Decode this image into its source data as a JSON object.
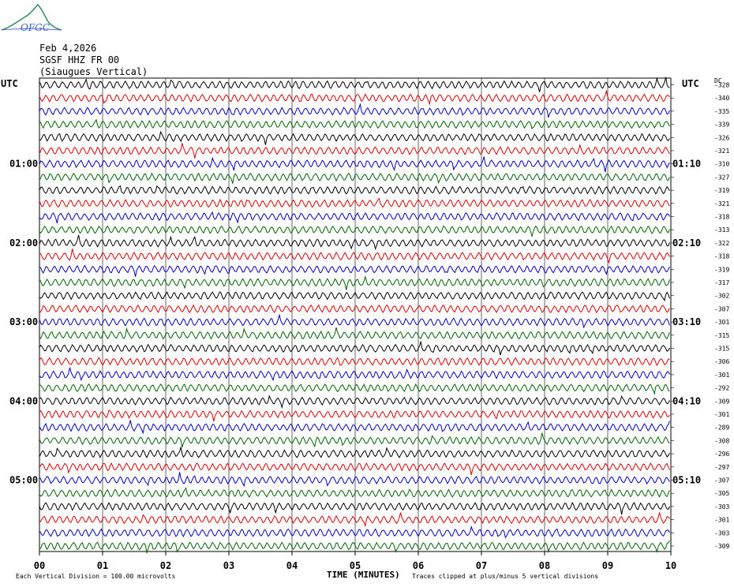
{
  "header": {
    "logo_text": "OFGC",
    "date": "Feb 4,2026",
    "station": "SGSF HHZ FR 00",
    "location": "(Siaugues Vertical)"
  },
  "chart_data": {
    "type": "line",
    "description_kind": "helicorder",
    "utc_label_left": "UTC",
    "utc_label_right": "UTC",
    "dc_header": "DC",
    "xlabel": "TIME (MINUTES)",
    "x_ticks": [
      "00",
      "01",
      "02",
      "03",
      "04",
      "05",
      "06",
      "07",
      "08",
      "09",
      "10"
    ],
    "xlim": [
      0,
      10
    ],
    "left_hour_labels": [
      {
        "row": 6,
        "text": "01:00"
      },
      {
        "row": 12,
        "text": "02:00"
      },
      {
        "row": 18,
        "text": "03:00"
      },
      {
        "row": 24,
        "text": "04:00"
      },
      {
        "row": 30,
        "text": "05:00"
      }
    ],
    "right_hour_labels": [
      {
        "row": 6,
        "text": "01:10"
      },
      {
        "row": 12,
        "text": "02:10"
      },
      {
        "row": 18,
        "text": "03:10"
      },
      {
        "row": 24,
        "text": "04:10"
      },
      {
        "row": 30,
        "text": "05:10"
      }
    ],
    "dc_offsets": [
      -328,
      -340,
      -335,
      -339,
      -326,
      -321,
      -310,
      -327,
      -319,
      -321,
      -318,
      -313,
      -322,
      -318,
      -319,
      -317,
      -302,
      -307,
      -301,
      -315,
      -315,
      -306,
      -301,
      -292,
      -309,
      -301,
      -289,
      -308,
      -296,
      -297,
      -307,
      -305,
      -303,
      -301,
      -303,
      -309
    ],
    "trace_colors": [
      "#000000",
      "#e00000",
      "#0000cc",
      "#006600"
    ],
    "footer_left": "Each Vertical Division =  100.00 microvolts",
    "footer_right": "Traces clipped at plus/minus 5 vertical divisions"
  }
}
